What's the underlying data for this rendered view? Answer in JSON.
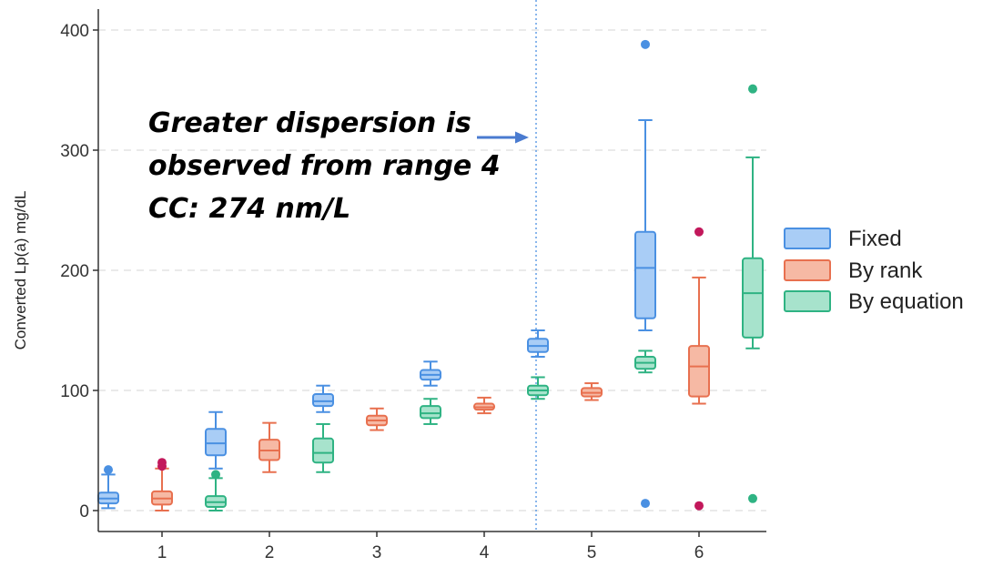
{
  "chart_data": {
    "type": "box",
    "ylabel": "Converted  Lp(a) mg/dL",
    "ylim": [
      0,
      400
    ],
    "yticks": [
      0,
      100,
      200,
      300,
      400
    ],
    "categories": [
      "1",
      "2",
      "3",
      "4",
      "5",
      "6"
    ],
    "grid": "horizontal dashed",
    "legend_position": "right",
    "series": [
      {
        "name": "Fixed",
        "color": "#4a90e2",
        "fill": "#a9cdf6",
        "boxes": [
          {
            "whisker_low": 2,
            "q1": 6,
            "median": 10,
            "q3": 15,
            "whisker_high": 30,
            "outliers": [
              34
            ]
          },
          {
            "whisker_low": 35,
            "q1": 46,
            "median": 56,
            "q3": 68,
            "whisker_high": 82,
            "outliers": []
          },
          {
            "whisker_low": 82,
            "q1": 87,
            "median": 91,
            "q3": 97,
            "whisker_high": 104,
            "outliers": []
          },
          {
            "whisker_low": 104,
            "q1": 109,
            "median": 113,
            "q3": 117,
            "whisker_high": 124,
            "outliers": []
          },
          {
            "whisker_low": 128,
            "q1": 132,
            "median": 137,
            "q3": 143,
            "whisker_high": 150,
            "outliers": []
          },
          {
            "whisker_low": 150,
            "q1": 160,
            "median": 202,
            "q3": 232,
            "whisker_high": 325,
            "outliers": [
              388,
              6
            ]
          }
        ]
      },
      {
        "name": "By rank",
        "color": "#e8704f",
        "fill": "#f6b9a4",
        "boxes": [
          {
            "whisker_low": 0,
            "q1": 5,
            "median": 10,
            "q3": 16,
            "whisker_high": 35,
            "outliers": [
              37,
              40
            ]
          },
          {
            "whisker_low": 32,
            "q1": 42,
            "median": 50,
            "q3": 59,
            "whisker_high": 73,
            "outliers": []
          },
          {
            "whisker_low": 67,
            "q1": 71,
            "median": 75,
            "q3": 79,
            "whisker_high": 85,
            "outliers": []
          },
          {
            "whisker_low": 81,
            "q1": 84,
            "median": 86,
            "q3": 89,
            "whisker_high": 94,
            "outliers": []
          },
          {
            "whisker_low": 92,
            "q1": 95,
            "median": 98,
            "q3": 102,
            "whisker_high": 106,
            "outliers": []
          },
          {
            "whisker_low": 89,
            "q1": 95,
            "median": 120,
            "q3": 137,
            "whisker_high": 194,
            "outliers": [
              232,
              4
            ]
          }
        ]
      },
      {
        "name": "By equation",
        "color": "#2fb383",
        "fill": "#a7e3cc",
        "boxes": [
          {
            "whisker_low": 0,
            "q1": 3,
            "median": 7,
            "q3": 12,
            "whisker_high": 27,
            "outliers": [
              30
            ]
          },
          {
            "whisker_low": 32,
            "q1": 40,
            "median": 48,
            "q3": 60,
            "whisker_high": 72,
            "outliers": []
          },
          {
            "whisker_low": 72,
            "q1": 77,
            "median": 81,
            "q3": 87,
            "whisker_high": 93,
            "outliers": []
          },
          {
            "whisker_low": 93,
            "q1": 96,
            "median": 100,
            "q3": 104,
            "whisker_high": 111,
            "outliers": []
          },
          {
            "whisker_low": 115,
            "q1": 118,
            "median": 123,
            "q3": 128,
            "whisker_high": 133,
            "outliers": []
          },
          {
            "whisker_low": 135,
            "q1": 144,
            "median": 181,
            "q3": 210,
            "whisker_high": 294,
            "outliers": [
              351,
              10
            ]
          }
        ]
      }
    ],
    "reference_line": {
      "after_category": "4",
      "style": "dotted",
      "color": "#4a90e2"
    },
    "annotation": {
      "lines": [
        "Greater dispersion is",
        "observed from range 4",
        "CC: 274 nm/L"
      ],
      "arrow_color": "#4a7bd0"
    }
  }
}
